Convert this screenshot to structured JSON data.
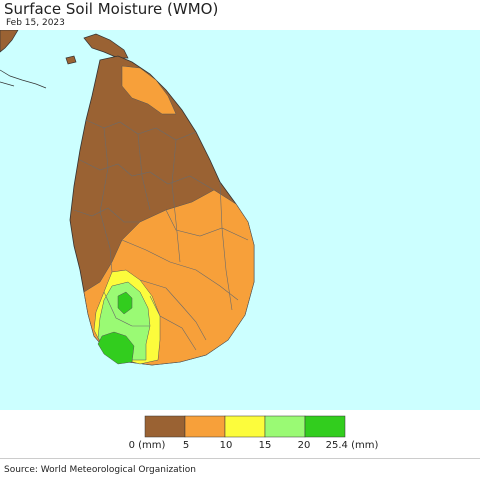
{
  "header": {
    "title": "Surface Soil Moisture (WMO)",
    "date": "Feb 15, 2023"
  },
  "legend": {
    "bins": [
      {
        "color": "#9a6233"
      },
      {
        "color": "#f7a03a"
      },
      {
        "color": "#fcfc3c"
      },
      {
        "color": "#9afa74"
      },
      {
        "color": "#32cd1e"
      }
    ],
    "labels": [
      "0 (mm)",
      "5",
      "10",
      "15",
      "20",
      "25.4 (mm)"
    ]
  },
  "colors": {
    "ocean": "#ccffff",
    "mainland": "#9a6233"
  },
  "footer": {
    "source": "Source: World Meteorological Organization"
  }
}
